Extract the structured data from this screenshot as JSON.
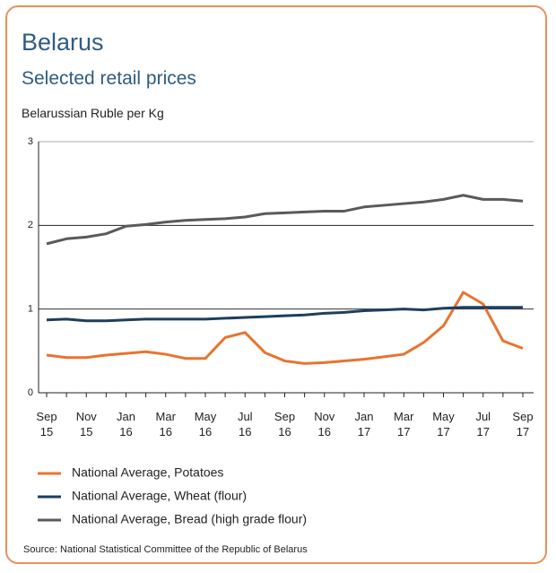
{
  "chart_data": {
    "type": "line",
    "title": "Belarus",
    "subtitle": "Selected retail prices",
    "y_label": "Belarussian Ruble per Kg",
    "source": "Source: National Statistical Committee of the Republic of Belarus",
    "categories": [
      "Sep 15",
      null,
      "Nov 15",
      null,
      "Jan 16",
      null,
      "Mar 16",
      null,
      "May 16",
      null,
      "Jul 16",
      null,
      "Sep 16",
      null,
      "Nov 16",
      null,
      "Jan 17",
      null,
      "Mar 17",
      null,
      "May 17",
      null,
      "Jul 17",
      null,
      "Sep 17"
    ],
    "ylim": [
      0,
      3
    ],
    "yticks": [
      0,
      1,
      2,
      3
    ],
    "grid": true,
    "series": [
      {
        "name": "National Average, Potatoes",
        "color": "#e8742f",
        "values": [
          0.45,
          0.42,
          0.42,
          0.45,
          0.47,
          0.49,
          0.46,
          0.41,
          0.41,
          0.66,
          0.72,
          0.48,
          0.38,
          0.35,
          0.36,
          0.38,
          0.4,
          0.43,
          0.46,
          0.6,
          0.8,
          1.2,
          1.06,
          0.62,
          0.53
        ]
      },
      {
        "name": "National Average, Wheat (flour)",
        "color": "#1d3f5e",
        "values": [
          0.87,
          0.88,
          0.86,
          0.86,
          0.87,
          0.88,
          0.88,
          0.88,
          0.88,
          0.89,
          0.9,
          0.91,
          0.92,
          0.93,
          0.95,
          0.96,
          0.98,
          0.99,
          1.0,
          0.99,
          1.01,
          1.02,
          1.02,
          1.02,
          1.02
        ]
      },
      {
        "name": "National Average, Bread (high grade flour)",
        "color": "#5a5a5a",
        "values": [
          1.78,
          1.84,
          1.86,
          1.9,
          1.99,
          2.01,
          2.04,
          2.06,
          2.07,
          2.08,
          2.1,
          2.14,
          2.15,
          2.16,
          2.17,
          2.17,
          2.22,
          2.24,
          2.26,
          2.28,
          2.31,
          2.36,
          2.31,
          2.31,
          2.29
        ]
      }
    ]
  }
}
